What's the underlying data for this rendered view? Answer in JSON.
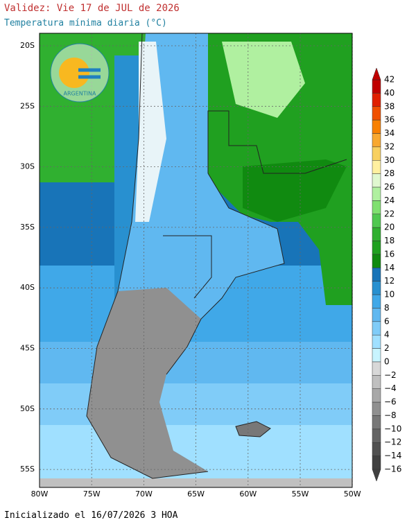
{
  "header": {
    "validity": "Validez: Vie 17 de JUL de 2026",
    "subtitle": "Temperatura mínima diaria (°C)"
  },
  "logo": {
    "text": "ARGENTINA"
  },
  "map": {
    "lat_labels": [
      "20S",
      "25S",
      "30S",
      "35S",
      "40S",
      "45S",
      "50S",
      "55S"
    ],
    "lon_labels": [
      "80W",
      "75W",
      "70W",
      "65W",
      "60W",
      "55W",
      "50W"
    ]
  },
  "colorbar": {
    "labels": [
      "42",
      "40",
      "38",
      "36",
      "34",
      "32",
      "30",
      "28",
      "26",
      "24",
      "22",
      "20",
      "18",
      "16",
      "14",
      "12",
      "10",
      "8",
      "6",
      "4",
      "2",
      "0",
      "−2",
      "−4",
      "−6",
      "−8",
      "−10",
      "−12",
      "−14",
      "−16"
    ],
    "colors": [
      "#c00000",
      "#e02000",
      "#f05000",
      "#f88000",
      "#f8a830",
      "#f8d060",
      "#fff0a0",
      "#e0f8d0",
      "#b0f0a0",
      "#80e070",
      "#50c850",
      "#30b030",
      "#20a020",
      "#108a10",
      "#1874b8",
      "#2890d0",
      "#40a8e8",
      "#60b8f0",
      "#80ccf8",
      "#a0e0ff",
      "#c8f4ff",
      "#d8d8d8",
      "#c0c0c0",
      "#a8a8a8",
      "#909090",
      "#787878",
      "#646464",
      "#505050",
      "#404040"
    ]
  },
  "footer": {
    "text": "Inicializado el 16/07/2026 3 HOA"
  }
}
